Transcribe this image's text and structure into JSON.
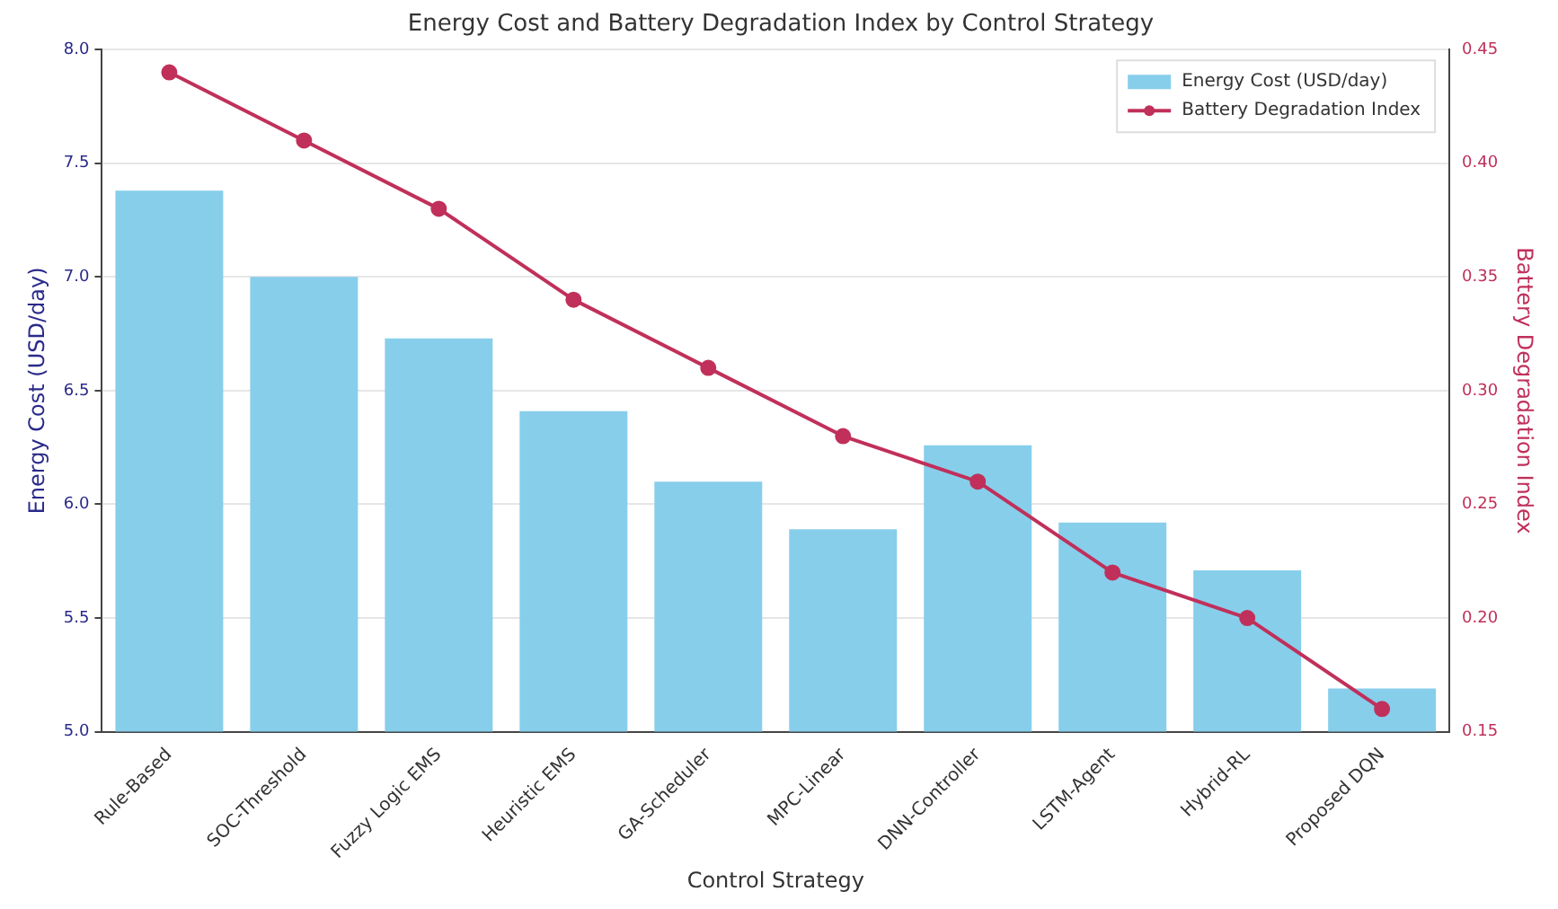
{
  "chart_data": {
    "type": "bar",
    "title": "Energy Cost and Battery Degradation Index by Control Strategy",
    "xlabel": "Control Strategy",
    "ylabel": "Energy Cost (USD/day)",
    "y2label": "Battery Degradation Index",
    "categories": [
      "Rule-Based",
      "SOC-Threshold",
      "Fuzzy Logic EMS",
      "Heuristic EMS",
      "GA-Scheduler",
      "MPC-Linear",
      "DNN-Controller",
      "LSTM-Agent",
      "Hybrid-RL",
      "Proposed DQN"
    ],
    "series": [
      {
        "name": "Energy Cost (USD/day)",
        "color": "#87ceeb",
        "values": [
          7.38,
          7.0,
          6.73,
          6.41,
          6.1,
          5.89,
          6.26,
          5.92,
          5.71,
          5.19
        ]
      },
      {
        "name": "Battery Degradation Index",
        "type": "line",
        "axis": "y2",
        "color": "#c0305a",
        "values": [
          0.44,
          0.41,
          0.38,
          0.34,
          0.31,
          0.28,
          0.26,
          0.22,
          0.2,
          0.16
        ]
      }
    ],
    "ylim": [
      5,
      8
    ],
    "yticks": [
      {
        "value": 5,
        "label": "5.0"
      },
      5.5,
      {
        "value": 6,
        "label": "6.0"
      },
      6.5,
      {
        "value": 7,
        "label": "7.0"
      },
      7.5,
      {
        "value": 8,
        "label": "8.0"
      }
    ],
    "y2lim": [
      0.15,
      0.45
    ],
    "y2ticks": [
      0.15,
      {
        "value": 0.2,
        "label": "0.20"
      },
      0.25,
      {
        "value": 0.3,
        "label": "0.30"
      },
      0.35,
      {
        "value": 0.4,
        "label": "0.40"
      },
      0.45
    ],
    "grid": "y",
    "legend": "top right",
    "marker": "circle",
    "line_style": "solid"
  }
}
